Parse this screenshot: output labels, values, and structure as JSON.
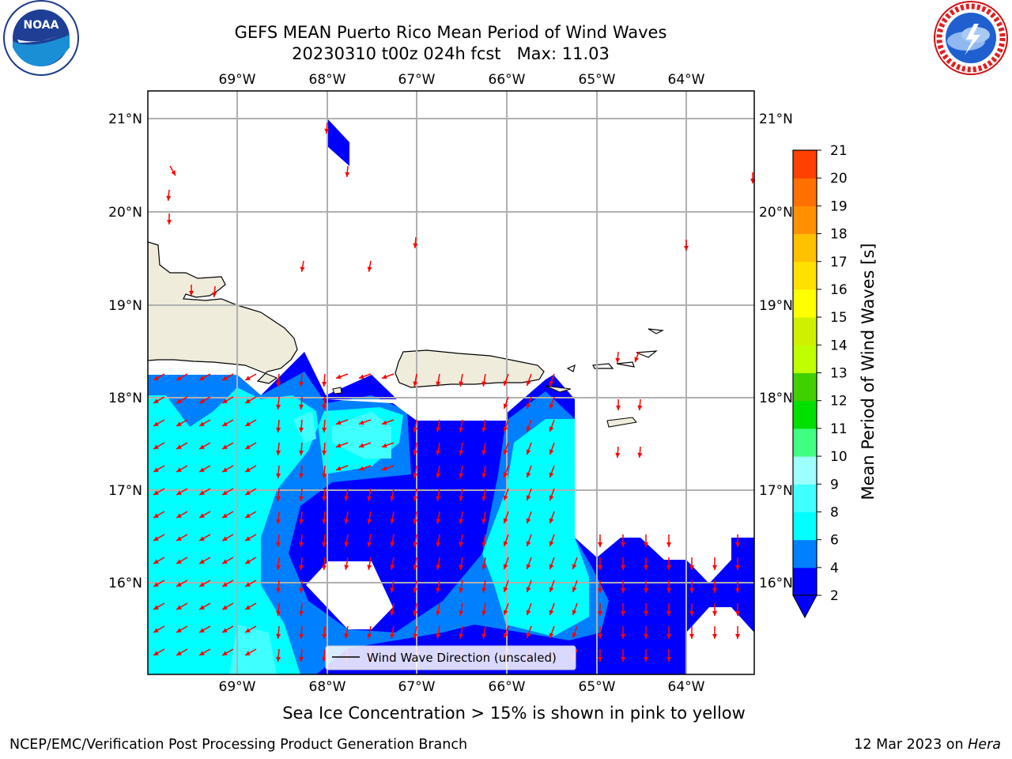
{
  "header": {
    "title_line1": "GEFS MEAN Puerto Rico Mean Period of Wind Waves",
    "title_line2": "20230310 t00z 024h fcst   Max: 11.03"
  },
  "logos": {
    "left": "noaa-logo",
    "left_text": "NOAA",
    "right": "nws-logo"
  },
  "map": {
    "lon_labels": [
      "69°W",
      "68°W",
      "67°W",
      "66°W",
      "65°W",
      "64°W"
    ],
    "lat_labels": [
      "21°N",
      "20°N",
      "19°N",
      "18°N",
      "17°N",
      "16°N"
    ],
    "legend_label": "Wind Wave Direction (unscaled)",
    "arrow_color": "#ff0000",
    "land_color": "#efecdc"
  },
  "colorbar": {
    "label": "Mean Period of Wind Waves [s]",
    "ticks": [
      "2",
      "4",
      "6",
      "8",
      "9",
      "10",
      "11",
      "12",
      "13",
      "14",
      "15",
      "16",
      "17",
      "18",
      "19",
      "20",
      "21"
    ],
    "colors": [
      "#0000ff",
      "#0080ff",
      "#00ffff",
      "#40ffff",
      "#9dffff",
      "#40ff80",
      "#00e000",
      "#40d000",
      "#c0ff00",
      "#d0f000",
      "#ffff00",
      "#ffe000",
      "#ffc000",
      "#ff9000",
      "#ff7000",
      "#ff4000",
      "#ff0000"
    ]
  },
  "notes": {
    "ice": "Sea Ice Concentration > 15% is shown in pink to yellow",
    "producer": "NCEP/EMC/Verification Post Processing Product Generation Branch",
    "date": "12 Mar 2023 on ",
    "machine": "Hera"
  }
}
